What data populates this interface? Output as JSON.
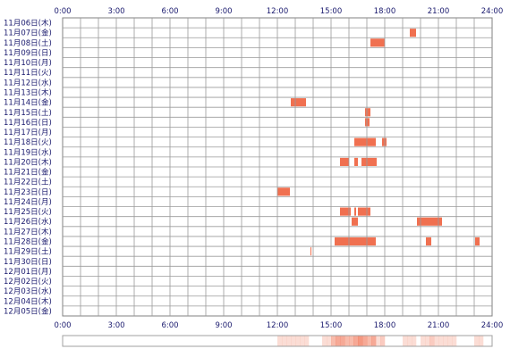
{
  "chart_data": {
    "type": "heatmap",
    "title": "",
    "xlabel": "",
    "ylabel": "",
    "x_ticks": [
      "0:00",
      "3:00",
      "6:00",
      "9:00",
      "12:00",
      "15:00",
      "18:00",
      "21:00",
      "24:00"
    ],
    "xlim_hours": [
      0,
      24
    ],
    "grid": true,
    "bar_color": "#f07050",
    "rows": [
      "11月06日(木)",
      "11月07日(金)",
      "11月08日(土)",
      "11月09日(日)",
      "11月10日(月)",
      "11月11日(火)",
      "11月12日(水)",
      "11月13日(木)",
      "11月14日(金)",
      "11月15日(土)",
      "11月16日(日)",
      "11月17日(月)",
      "11月18日(火)",
      "11月19日(水)",
      "11月20日(木)",
      "11月21日(金)",
      "11月22日(土)",
      "11月23日(日)",
      "11月24日(月)",
      "11月25日(火)",
      "11月26日(水)",
      "11月27日(木)",
      "11月28日(金)",
      "11月29日(土)",
      "11月30日(日)",
      "12月01日(月)",
      "12月02日(火)",
      "12月03日(水)",
      "12月04日(木)",
      "12月05日(金)"
    ],
    "intervals": [
      {
        "row": 1,
        "start": 19.4,
        "end": 19.75
      },
      {
        "row": 2,
        "start": 17.2,
        "end": 18.0
      },
      {
        "row": 8,
        "start": 12.75,
        "end": 13.6
      },
      {
        "row": 9,
        "start": 16.9,
        "end": 17.2
      },
      {
        "row": 10,
        "start": 16.9,
        "end": 17.15
      },
      {
        "row": 12,
        "start": 16.3,
        "end": 17.5
      },
      {
        "row": 12,
        "start": 17.85,
        "end": 18.1
      },
      {
        "row": 14,
        "start": 15.5,
        "end": 16.0
      },
      {
        "row": 14,
        "start": 16.3,
        "end": 16.5
      },
      {
        "row": 14,
        "start": 16.7,
        "end": 17.55
      },
      {
        "row": 17,
        "start": 12.0,
        "end": 12.7
      },
      {
        "row": 19,
        "start": 15.5,
        "end": 16.1
      },
      {
        "row": 19,
        "start": 16.3,
        "end": 16.4
      },
      {
        "row": 19,
        "start": 16.5,
        "end": 17.2
      },
      {
        "row": 20,
        "start": 16.15,
        "end": 16.5
      },
      {
        "row": 20,
        "start": 19.8,
        "end": 21.2
      },
      {
        "row": 22,
        "start": 15.2,
        "end": 17.5
      },
      {
        "row": 22,
        "start": 20.3,
        "end": 20.6
      },
      {
        "row": 22,
        "start": 23.05,
        "end": 23.3
      },
      {
        "row": 23,
        "start": 13.85,
        "end": 13.9
      }
    ],
    "summary_strip": [
      0,
      0,
      0,
      0,
      0,
      0,
      0,
      0,
      0,
      0,
      0,
      0,
      0,
      0,
      0,
      0,
      0,
      0,
      0,
      0,
      0,
      0,
      0,
      0,
      0,
      0,
      0,
      0,
      0,
      0,
      0,
      0,
      0,
      0,
      0,
      0,
      0,
      0,
      0,
      0,
      0,
      0,
      0,
      0,
      0,
      0,
      0,
      0,
      1,
      1,
      1,
      1,
      1,
      1,
      1,
      0,
      0,
      0,
      1,
      1,
      3,
      4,
      4,
      3,
      3,
      4,
      5,
      4,
      3,
      4,
      1,
      2,
      0,
      0,
      0,
      0,
      1,
      1,
      1,
      0,
      1,
      1,
      2,
      1,
      1,
      1,
      1,
      1,
      0,
      0,
      0,
      0,
      1,
      1,
      0,
      0
    ]
  }
}
